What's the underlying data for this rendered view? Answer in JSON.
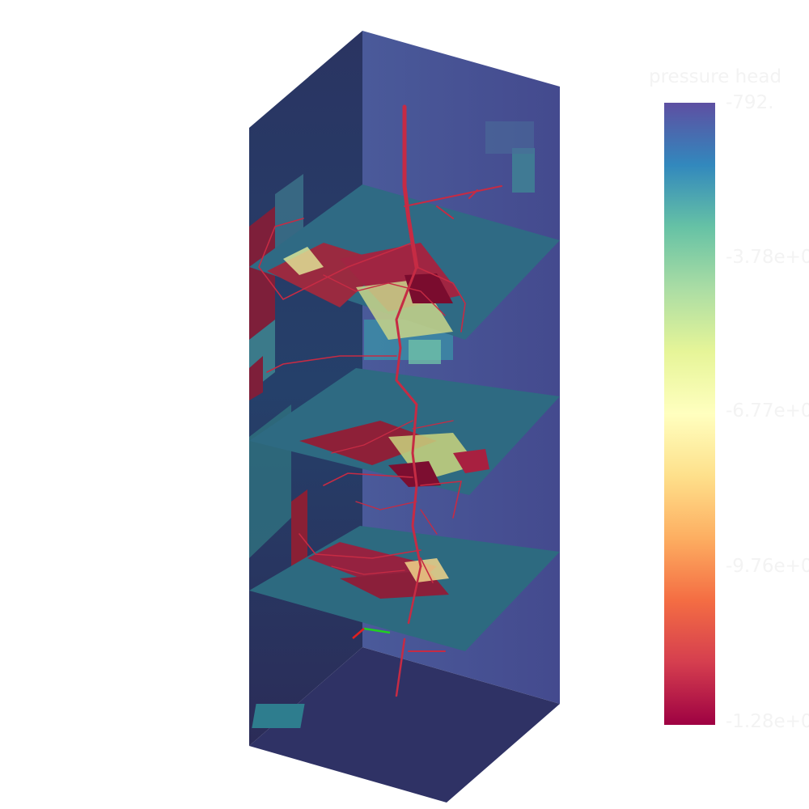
{
  "colorbar": {
    "title": "pressure head",
    "max_label": "-792.",
    "tick_labels": [
      "-3.78e+0",
      "-6.77e+0",
      "-9.76e+0"
    ],
    "min_label": "-1.28e+0",
    "colormap": "spectral",
    "colors": [
      "#9e0142",
      "#d53e4f",
      "#f46d43",
      "#fdae61",
      "#fee08b",
      "#ffffbf",
      "#e6f598",
      "#abdda4",
      "#66c2a5",
      "#3288bd",
      "#5e4fa2"
    ]
  },
  "scene": {
    "domain_color": "#3d3f78",
    "root_color": "#c62b44",
    "axes_colors": [
      "#e02020",
      "#20d020"
    ]
  }
}
